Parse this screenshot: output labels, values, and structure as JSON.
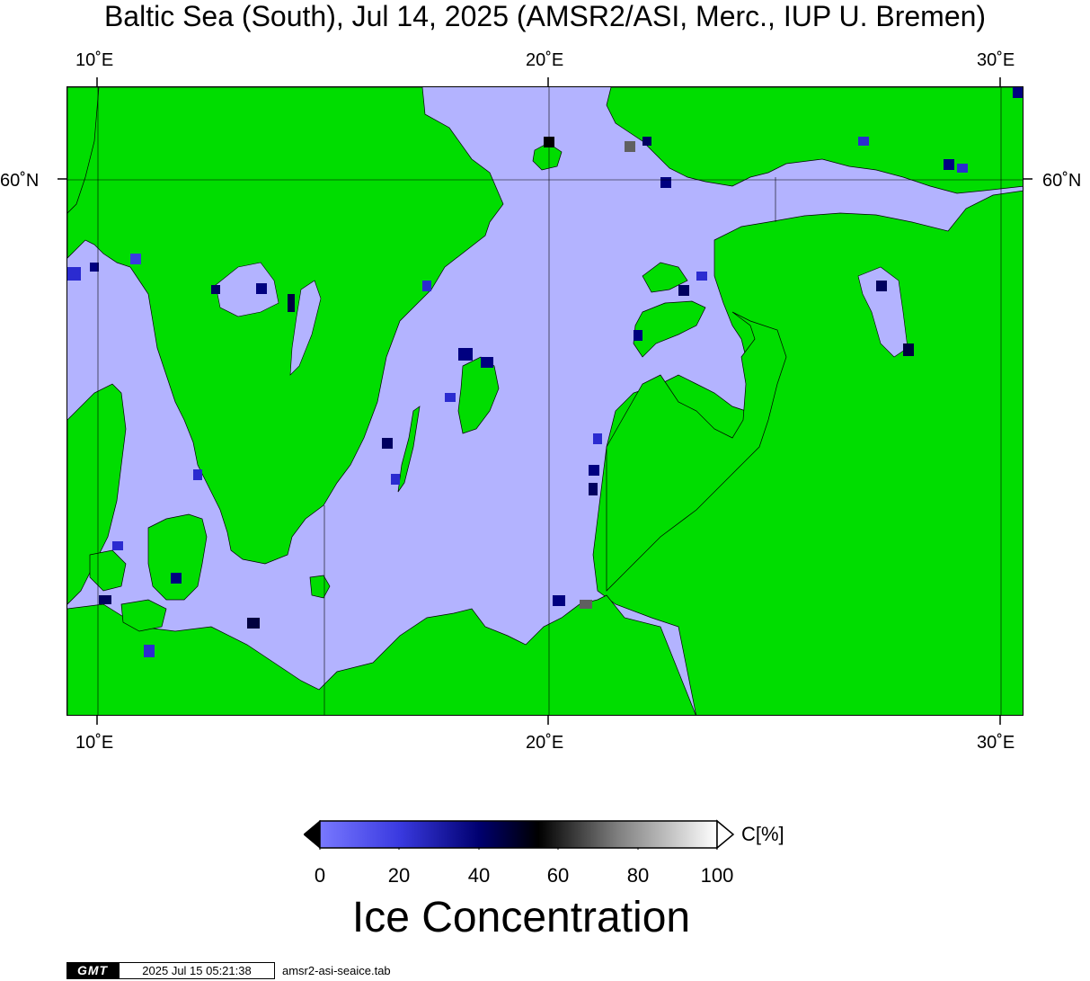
{
  "title": "Baltic Sea (South), Jul 14, 2025 (AMSR2/ASI, Merc., IUP U. Bremen)",
  "axes": {
    "lon_ticks_top": [
      "10˚E",
      "20˚E",
      "30˚E"
    ],
    "lon_ticks_bottom": [
      "10˚E",
      "20˚E",
      "30˚E"
    ],
    "lat_tick_left": "60˚N",
    "lat_tick_right": "60˚N"
  },
  "map": {
    "region": "Baltic Sea (South)",
    "projection": "Merc.",
    "land_color": "#00dd00",
    "water_color": "#b3b3ff"
  },
  "colorbar": {
    "unit_label": "C[%]",
    "ticks": [
      "0",
      "20",
      "40",
      "60",
      "80",
      "100"
    ],
    "title": "Ice Concentration",
    "colors": [
      "#7070ff",
      "#000080",
      "#000000",
      "#ffffff"
    ]
  },
  "footer": {
    "logo": "GMT",
    "timestamp": "2025 Jul 15 05:21:38",
    "filename": "amsr2-asi-seaice.tab"
  }
}
